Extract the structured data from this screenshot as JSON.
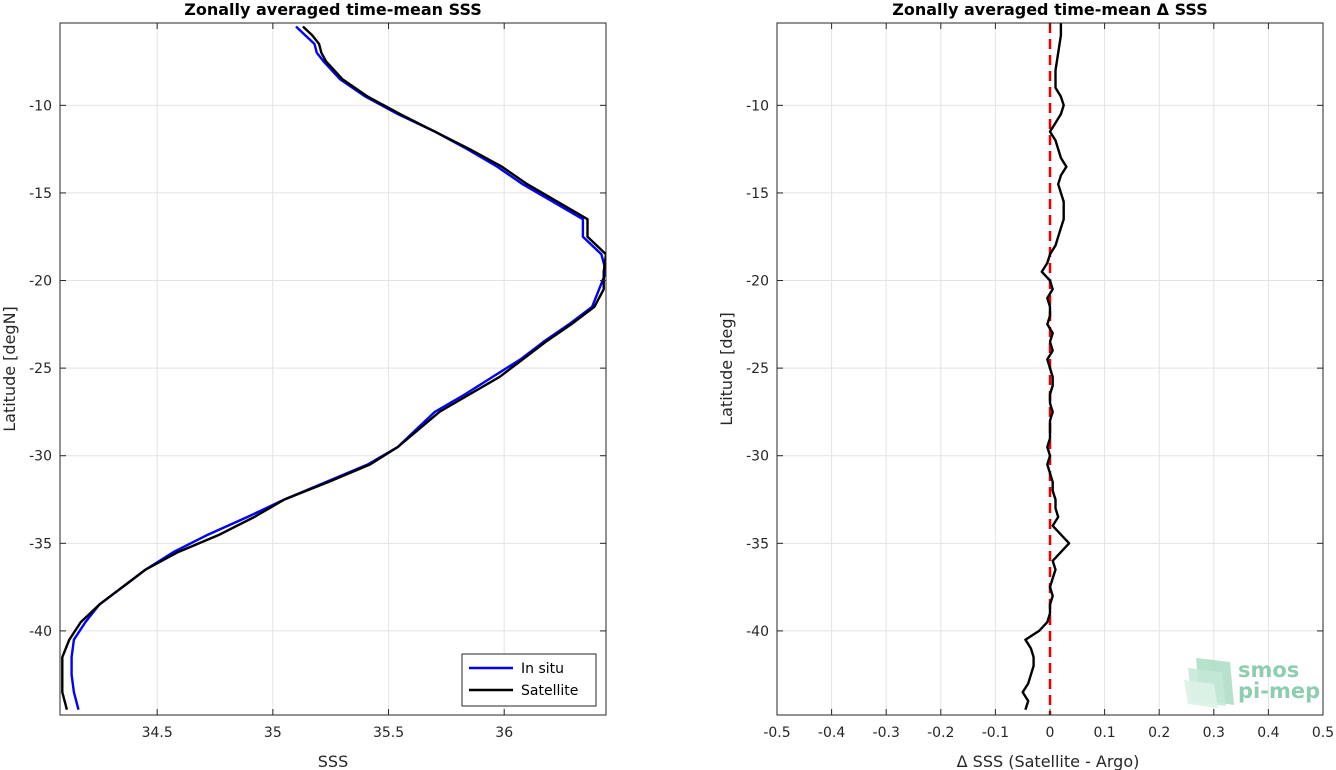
{
  "chart_data": [
    {
      "type": "line",
      "title": "Zonally averaged time-mean SSS",
      "xlabel": "SSS",
      "ylabel": "Latitude [degN]",
      "xlim": [
        34.08,
        36.44
      ],
      "ylim": [
        -44.8,
        -5.3
      ],
      "xticks": [
        34.5,
        35,
        35.5,
        36
      ],
      "xtick_labels": [
        "34.5",
        "35",
        "35.5",
        "36"
      ],
      "yticks": [
        -40,
        -35,
        -30,
        -25,
        -20,
        -15,
        -10
      ],
      "ytick_labels": [
        "-40",
        "-35",
        "-30",
        "-25",
        "-20",
        "-15",
        "-10"
      ],
      "grid": true,
      "legend": "bottom-right",
      "series": [
        {
          "name": "In situ",
          "color": "#0000ff",
          "y": [
            -5.5,
            -6,
            -6.5,
            -7,
            -7.5,
            -8.5,
            -9.5,
            -10.5,
            -11.5,
            -12.5,
            -13.5,
            -14.5,
            -15.5,
            -16.5,
            -17.5,
            -18.5,
            -19.5,
            -20.5,
            -21.5,
            -22.5,
            -23.5,
            -24.5,
            -25.5,
            -26.5,
            -27.5,
            -28.5,
            -29.5,
            -30.5,
            -31.5,
            -32.5,
            -33.5,
            -34.5,
            -35.5,
            -36.5,
            -37.5,
            -38.5,
            -39.5,
            -40.5,
            -41.5,
            -42.5,
            -43.5,
            -44.5
          ],
          "x": [
            35.1,
            35.14,
            35.18,
            35.19,
            35.22,
            35.29,
            35.4,
            35.54,
            35.7,
            35.84,
            35.97,
            36.08,
            36.21,
            36.34,
            36.34,
            36.42,
            36.44,
            36.41,
            36.38,
            36.28,
            36.17,
            36.07,
            35.95,
            35.83,
            35.7,
            35.62,
            35.54,
            35.41,
            35.23,
            35.05,
            34.89,
            34.72,
            34.57,
            34.45,
            34.35,
            34.25,
            34.19,
            34.14,
            34.13,
            34.13,
            34.14,
            34.16
          ]
        },
        {
          "name": "Satellite",
          "color": "#000000",
          "y": [
            -5.5,
            -6,
            -6.5,
            -7,
            -7.5,
            -8.5,
            -9.5,
            -10.5,
            -11.5,
            -12.5,
            -13.5,
            -14.5,
            -15.5,
            -16.5,
            -17.5,
            -18.5,
            -19.5,
            -20.5,
            -21.5,
            -22.5,
            -23.5,
            -24.5,
            -25.5,
            -26.5,
            -27.5,
            -28.5,
            -29.5,
            -30.5,
            -31.5,
            -32.5,
            -33.5,
            -34.5,
            -35.5,
            -36.5,
            -37.5,
            -38.5,
            -39.5,
            -40.5,
            -41.5,
            -42.5,
            -43.5,
            -44.5
          ],
          "x": [
            35.13,
            35.17,
            35.2,
            35.21,
            35.23,
            35.3,
            35.41,
            35.55,
            35.7,
            35.85,
            35.99,
            36.1,
            36.23,
            36.36,
            36.36,
            36.44,
            36.43,
            36.43,
            36.39,
            36.29,
            36.18,
            36.08,
            35.98,
            35.85,
            35.72,
            35.63,
            35.54,
            35.42,
            35.24,
            35.05,
            34.92,
            34.77,
            34.59,
            34.45,
            34.35,
            34.25,
            34.17,
            34.12,
            34.09,
            34.09,
            34.09,
            34.11
          ]
        }
      ]
    },
    {
      "type": "line",
      "title": "Zonally averaged time-mean Δ SSS",
      "xlabel": "Δ SSS (Satellite - Argo)",
      "ylabel": "Latitude [deg]",
      "xlim": [
        -0.5,
        0.5
      ],
      "ylim": [
        -44.8,
        -5.3
      ],
      "xticks": [
        -0.5,
        -0.4,
        -0.3,
        -0.2,
        -0.1,
        0,
        0.1,
        0.2,
        0.3,
        0.4,
        0.5
      ],
      "xtick_labels": [
        "-0.5",
        "-0.4",
        "-0.3",
        "-0.2",
        "-0.1",
        "0",
        "0.1",
        "0.2",
        "0.3",
        "0.4",
        "0.5"
      ],
      "yticks": [
        -40,
        -35,
        -30,
        -25,
        -20,
        -15,
        -10
      ],
      "ytick_labels": [
        "-40",
        "-35",
        "-30",
        "-25",
        "-20",
        "-15",
        "-10"
      ],
      "grid": true,
      "reference_line": {
        "x": 0,
        "color": "#e60000",
        "style": "dashed"
      },
      "series": [
        {
          "color": "#000000",
          "y": [
            -5,
            -6,
            -7,
            -8,
            -9,
            -9.5,
            -10,
            -10.5,
            -11,
            -11.5,
            -12,
            -12.5,
            -13,
            -13.5,
            -14,
            -14.5,
            -15,
            -15.5,
            -16,
            -16.5,
            -17,
            -17.5,
            -18,
            -18.5,
            -19,
            -19.5,
            -20,
            -20.5,
            -21,
            -21.5,
            -22,
            -22.5,
            -23,
            -23.5,
            -24,
            -24.5,
            -25,
            -25.5,
            -26,
            -26.5,
            -27,
            -27.5,
            -28,
            -28.5,
            -29,
            -29.5,
            -30,
            -30.5,
            -31,
            -31.5,
            -32,
            -32.5,
            -33,
            -33.5,
            -34,
            -34.5,
            -35,
            -35.5,
            -36,
            -36.5,
            -37,
            -37.5,
            -38,
            -38.5,
            -39,
            -39.5,
            -40,
            -40.5,
            -41,
            -41.5,
            -42,
            -42.5,
            -43,
            -43.5,
            -44,
            -44.5
          ],
          "x": [
            0.02,
            0.02,
            0.015,
            0.01,
            0.01,
            0.02,
            0.025,
            0.02,
            0.01,
            0.0,
            0.01,
            0.015,
            0.02,
            0.03,
            0.02,
            0.015,
            0.02,
            0.025,
            0.025,
            0.025,
            0.02,
            0.015,
            0.01,
            0.0,
            -0.005,
            -0.015,
            0.0,
            0.005,
            -0.005,
            0.0,
            0.0,
            -0.005,
            0.005,
            0.0,
            0.005,
            -0.005,
            0.0,
            0.005,
            0.005,
            0.0,
            0.0,
            0.005,
            0.0,
            0.0,
            0.0,
            -0.005,
            0.0,
            -0.005,
            0.0,
            0.005,
            0.005,
            0.01,
            0.01,
            0.015,
            0.005,
            0.02,
            0.035,
            0.02,
            0.005,
            0.01,
            0.005,
            0.0,
            0.005,
            0.0,
            0.0,
            -0.005,
            -0.02,
            -0.045,
            -0.035,
            -0.03,
            -0.03,
            -0.035,
            -0.04,
            -0.05,
            -0.04,
            -0.045
          ]
        }
      ]
    }
  ],
  "logo": {
    "line1": "smos",
    "line2": "pi-mep",
    "color": "#8fcdb0"
  }
}
